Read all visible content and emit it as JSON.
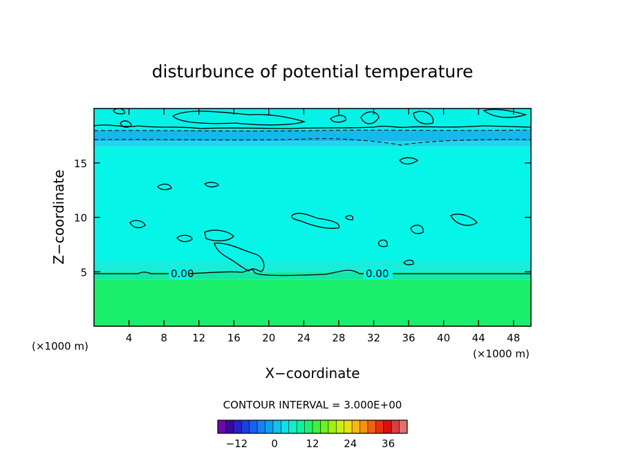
{
  "chart_data": {
    "type": "heatmap",
    "title": "disturbunce of potential temperature",
    "xlabel": "X−coordinate",
    "ylabel": "Z−coordinate",
    "x_unit": "(×1000 m)",
    "y_unit": "(×1000 m)",
    "xlim": [
      0,
      50
    ],
    "ylim": [
      0,
      20
    ],
    "x_ticks": [
      4,
      8,
      12,
      16,
      20,
      24,
      28,
      32,
      36,
      40,
      44,
      48
    ],
    "y_ticks": [
      5,
      10,
      15
    ],
    "contour_interval_text": "CONTOUR INTERVAL = 3.000E+00",
    "contour_labels": [
      {
        "x": 8.5,
        "z": 4.9,
        "text": "0.00"
      },
      {
        "x": 32.5,
        "z": 4.9,
        "text": "0.00"
      }
    ],
    "bands": [
      {
        "z0": 0.0,
        "z1": 4.3,
        "color": "#1bee6a"
      },
      {
        "z0": 4.3,
        "z1": 5.0,
        "color": "#15e8a6"
      },
      {
        "z0": 5.0,
        "z1": 6.0,
        "color": "#19ecd9"
      },
      {
        "z0": 6.0,
        "z1": 16.5,
        "color": "#06f5e9"
      },
      {
        "z0": 16.5,
        "z1": 17.0,
        "color": "#1ed7e8"
      },
      {
        "z0": 17.0,
        "z1": 18.0,
        "color": "#15b8ea"
      },
      {
        "z0": 18.0,
        "z1": 20.0,
        "color": "#07f2e6"
      }
    ],
    "colorbar": {
      "min": -18,
      "max": 42,
      "step": 3,
      "tick_labels": [
        -12,
        0,
        12,
        24,
        36
      ],
      "colors": [
        "#6a0aa8",
        "#3a0a9a",
        "#2a20c8",
        "#1a40e0",
        "#1a60f0",
        "#1a80f0",
        "#10a0f0",
        "#10c0f0",
        "#10e0e8",
        "#10f0c8",
        "#10f0a0",
        "#20f070",
        "#40f040",
        "#70f020",
        "#a0f010",
        "#c8f010",
        "#e8e010",
        "#f8b810",
        "#f89010",
        "#f06010",
        "#e83010",
        "#d81010",
        "#d84040",
        "#e07070"
      ]
    },
    "grid": false
  }
}
